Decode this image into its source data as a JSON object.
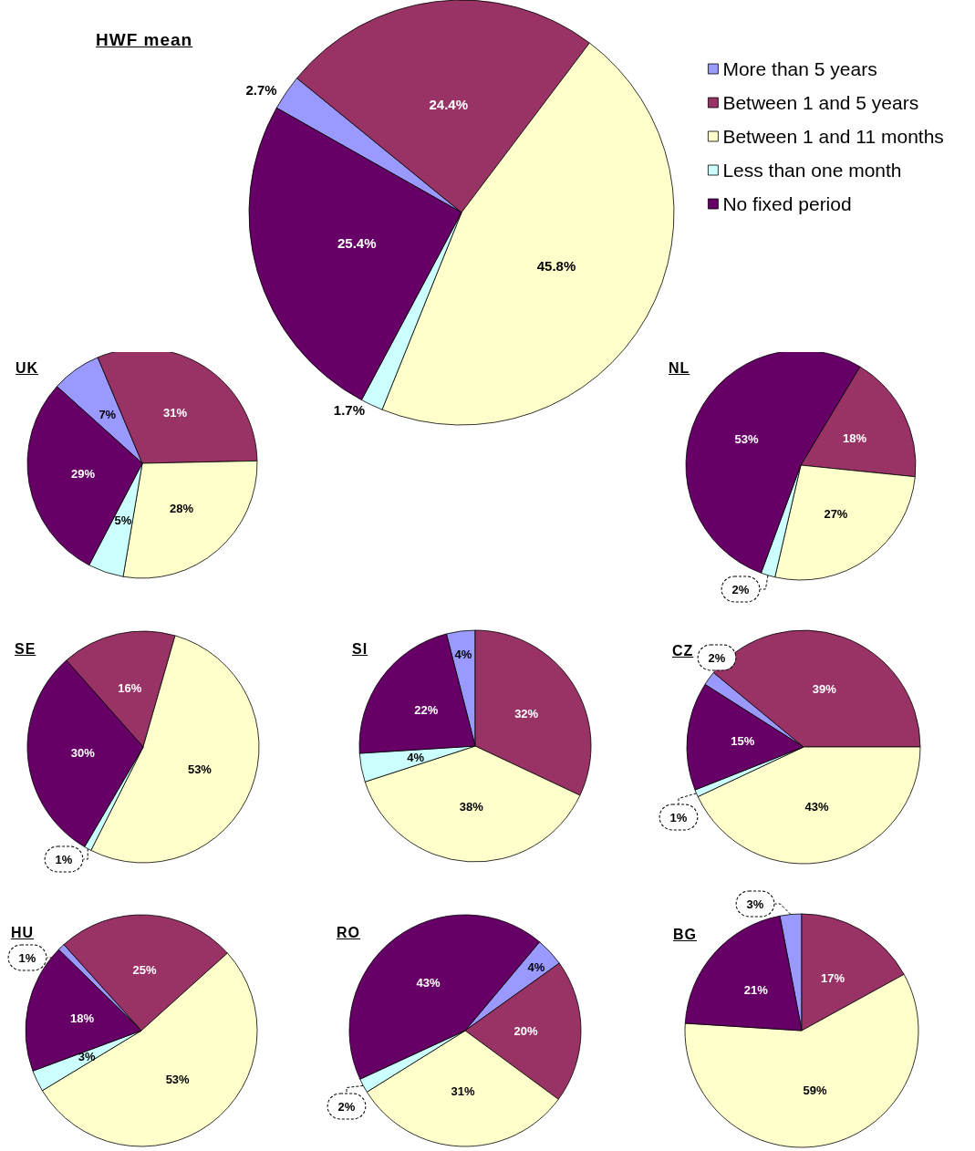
{
  "chart_data": [
    {
      "type": "pie",
      "title": "HWF mean",
      "categories": [
        "More than 5 years",
        "Between 1 and 5 years",
        "Between 1 and 11 months",
        "Less than one month",
        "No fixed period"
      ],
      "values": [
        2.7,
        24.4,
        45.8,
        1.7,
        25.4
      ],
      "colors": [
        "#9999ff",
        "#993366",
        "#ffffcc",
        "#ccffff",
        "#660066"
      ],
      "value_labels": [
        "2.7%",
        "24.4%",
        "45.8%",
        "1.7%",
        "25.4%"
      ],
      "legend": "top right"
    },
    {
      "type": "pie",
      "title": "UK",
      "categories": [
        null,
        null,
        null,
        null,
        null
      ],
      "values": [
        7,
        31,
        28,
        5,
        29
      ],
      "colors": [
        "#9999ff",
        "#993366",
        "#ffffcc",
        "#ccffff",
        "#660066"
      ],
      "value_labels": [
        "7%",
        "31%",
        "28%",
        "5%",
        "29%"
      ]
    },
    {
      "type": "pie",
      "title": "NL",
      "categories": [
        null,
        null,
        null,
        null
      ],
      "values": [
        18,
        27,
        2,
        53
      ],
      "colors": [
        "#993366",
        "#ffffcc",
        "#ccffff",
        "#660066"
      ],
      "value_labels": [
        "18%",
        "27%",
        "2%",
        "53%"
      ]
    },
    {
      "type": "pie",
      "title": "SE",
      "categories": [
        null,
        null,
        null,
        null
      ],
      "values": [
        16,
        53,
        1,
        30
      ],
      "colors": [
        "#993366",
        "#ffffcc",
        "#ccffff",
        "#660066"
      ],
      "value_labels": [
        "16%",
        "53%",
        "1%",
        "30%"
      ]
    },
    {
      "type": "pie",
      "title": "SI",
      "categories": [
        null,
        null,
        null,
        null,
        null
      ],
      "values": [
        4,
        32,
        38,
        4,
        22
      ],
      "colors": [
        "#9999ff",
        "#993366",
        "#ffffcc",
        "#ccffff",
        "#660066"
      ],
      "value_labels": [
        "4%",
        "32%",
        "38%",
        "4%",
        "22%"
      ]
    },
    {
      "type": "pie",
      "title": "CZ",
      "categories": [
        null,
        null,
        null,
        null,
        null
      ],
      "values": [
        2,
        39,
        43,
        1,
        15
      ],
      "colors": [
        "#9999ff",
        "#993366",
        "#ffffcc",
        "#ccffff",
        "#660066"
      ],
      "value_labels": [
        "2%",
        "39%",
        "43%",
        "1%",
        "15%"
      ]
    },
    {
      "type": "pie",
      "title": "HU",
      "categories": [
        null,
        null,
        null,
        null,
        null
      ],
      "values": [
        1,
        25,
        53,
        3,
        18
      ],
      "colors": [
        "#9999ff",
        "#993366",
        "#ffffcc",
        "#ccffff",
        "#660066"
      ],
      "value_labels": [
        "1%",
        "25%",
        "53%",
        "3%",
        "18%"
      ]
    },
    {
      "type": "pie",
      "title": "RO",
      "categories": [
        null,
        null,
        null,
        null,
        null
      ],
      "values": [
        4,
        20,
        31,
        2,
        43
      ],
      "colors": [
        "#9999ff",
        "#993366",
        "#ffffcc",
        "#ccffff",
        "#660066"
      ],
      "value_labels": [
        "4%",
        "20%",
        "31%",
        "2%",
        "43%"
      ]
    },
    {
      "type": "pie",
      "title": "BG",
      "categories": [
        null,
        null,
        null,
        null
      ],
      "values": [
        3,
        17,
        59,
        21
      ],
      "colors": [
        "#9999ff",
        "#993366",
        "#ffffcc",
        "#660066"
      ],
      "value_labels": [
        "3%",
        "17%",
        "59%",
        "21%"
      ]
    }
  ]
}
